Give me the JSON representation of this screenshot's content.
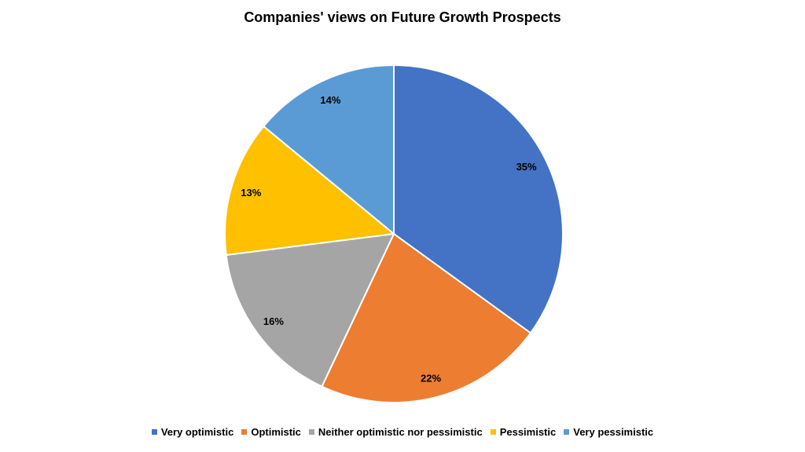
{
  "chart_data": {
    "type": "pie",
    "title": "Companies' views on Future Growth Prospects",
    "categories": [
      "Very optimistic",
      "Optimistic",
      "Neither optimistic nor pessimistic",
      "Pessimistic",
      "Very pessimistic"
    ],
    "values": [
      35,
      22,
      16,
      13,
      14
    ],
    "labels": [
      "35%",
      "22%",
      "16%",
      "13%",
      "14%"
    ],
    "colors": [
      "#4472C4",
      "#ED7D31",
      "#A5A5A5",
      "#FFC000",
      "#5B9BD5"
    ],
    "legend_position": "bottom"
  }
}
